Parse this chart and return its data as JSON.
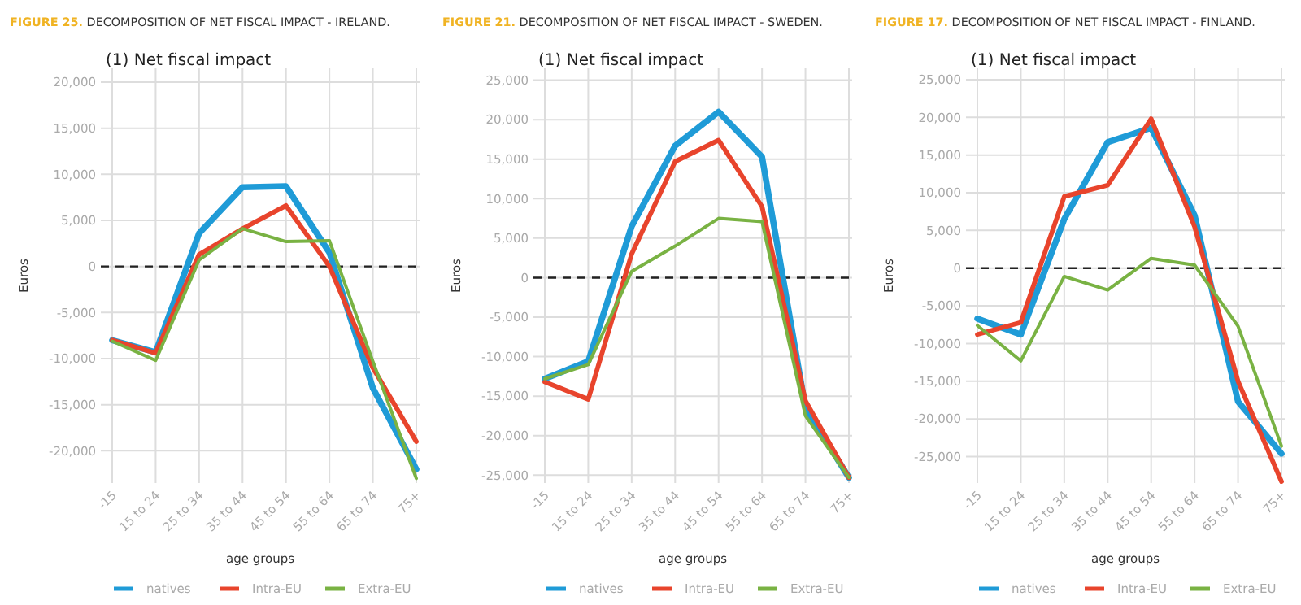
{
  "chart_data": [
    {
      "type": "line",
      "title": "FIGURE 25. DECOMPOSITION OF NET FISCAL IMPACT - IRELAND.",
      "subtitle": "(1) Net fiscal impact",
      "xlabel": "age groups",
      "ylabel": "Euros",
      "categories": [
        "-15",
        "15 to 24",
        "25 to 34",
        "35 to 44",
        "45 to 54",
        "55 to 64",
        "65 to 74",
        "75+"
      ],
      "series": [
        {
          "name": "natives",
          "color": "#1f9bd7",
          "values": [
            -8000,
            -9300,
            3600,
            8600,
            8700,
            1500,
            -13200,
            -22000
          ]
        },
        {
          "name": "Intra-EU",
          "color": "#e8442c",
          "values": [
            -8000,
            -9400,
            1300,
            4100,
            6600,
            0,
            -11000,
            -19000
          ]
        },
        {
          "name": "Extra-EU",
          "color": "#79b243",
          "values": [
            -8100,
            -10200,
            700,
            4100,
            2700,
            2800,
            -10300,
            -23000
          ]
        }
      ],
      "ylim": [
        -23500,
        21500
      ],
      "yticks": [
        {
          "value": -20000,
          "label": "-20,000"
        },
        {
          "value": -15000,
          "label": "-15,000"
        },
        {
          "value": -10000,
          "label": "-10,000"
        },
        {
          "value": -5000,
          "label": "-5,000"
        },
        {
          "value": 0,
          "label": "0"
        },
        {
          "value": 5000,
          "label": "5,000"
        },
        {
          "value": 10000,
          "label": "10,000"
        },
        {
          "value": 15000,
          "label": "15,000"
        },
        {
          "value": 20000,
          "label": "20,000"
        }
      ],
      "grid": true,
      "legend": "bottom",
      "line_style": "solid",
      "ref_lines": [
        {
          "axis": "y",
          "value": 0,
          "color": "#222222",
          "line_style": "dashed"
        }
      ]
    },
    {
      "type": "line",
      "title": "FIGURE 21. DECOMPOSITION OF NET FISCAL IMPACT - SWEDEN.",
      "subtitle": "(1) Net fiscal impact",
      "xlabel": "age groups",
      "ylabel": "Euros",
      "categories": [
        "-15",
        "15 to 24",
        "25 to 34",
        "35 to 44",
        "45 to 54",
        "55 to 64",
        "65 to 74",
        "75+"
      ],
      "series": [
        {
          "name": "natives",
          "color": "#1f9bd7",
          "values": [
            -12800,
            -10600,
            6500,
            16700,
            21000,
            15300,
            -16500,
            -25300
          ]
        },
        {
          "name": "Intra-EU",
          "color": "#e8442c",
          "values": [
            -13200,
            -15400,
            3000,
            14700,
            17400,
            9000,
            -15600,
            -25300
          ]
        },
        {
          "name": "Extra-EU",
          "color": "#79b243",
          "values": [
            -12800,
            -11000,
            800,
            4000,
            7500,
            7100,
            -17500,
            -25300
          ]
        }
      ],
      "ylim": [
        -26000,
        26500
      ],
      "yticks": [
        {
          "value": -25000,
          "label": "-25,000"
        },
        {
          "value": -20000,
          "label": "-20,000"
        },
        {
          "value": -15000,
          "label": "-15,000"
        },
        {
          "value": -10000,
          "label": "-10,000"
        },
        {
          "value": -5000,
          "label": "-5,000"
        },
        0,
        {
          "value": 5000,
          "label": "5,000"
        },
        {
          "value": 10000,
          "label": "10,000"
        },
        {
          "value": 15000,
          "label": "15,000"
        },
        {
          "value": 20000,
          "label": "20,000"
        },
        {
          "value": 25000,
          "label": "25,000"
        }
      ],
      "grid": true,
      "legend": "bottom",
      "line_style": "solid",
      "ref_lines": [
        {
          "axis": "y",
          "value": 0,
          "color": "#222222",
          "line_style": "dashed"
        }
      ]
    },
    {
      "type": "line",
      "title": "FIGURE 17. DECOMPOSITION OF NET FISCAL IMPACT - FINLAND.",
      "subtitle": "(1) Net fiscal impact",
      "xlabel": "age groups",
      "ylabel": "Euros",
      "categories": [
        "-15",
        "15 to 24",
        "25 to 34",
        "35 to 44",
        "45 to 54",
        "55 to 64",
        "65 to 74",
        "75+"
      ],
      "series": [
        {
          "name": "natives",
          "color": "#1f9bd7",
          "values": [
            -6700,
            -8800,
            6500,
            16700,
            18600,
            7000,
            -17700,
            -24600
          ]
        },
        {
          "name": "Intra-EU",
          "color": "#e8442c",
          "values": [
            -8800,
            -7200,
            9500,
            11000,
            19800,
            5500,
            -15000,
            -28300
          ]
        },
        {
          "name": "Extra-EU",
          "color": "#79b243",
          "values": [
            -7600,
            -12300,
            -1100,
            -2900,
            1300,
            400,
            -7700,
            -23600
          ]
        }
      ],
      "ylim": [
        -28500,
        26500
      ],
      "yticks": [
        {
          "value": -25000,
          "label": "-25,000"
        },
        {
          "value": -20000,
          "label": "-20,000"
        },
        {
          "value": -15000,
          "label": "-15,000"
        },
        {
          "value": -10000,
          "label": "-10,000"
        },
        {
          "value": -5000,
          "label": "-5,000"
        },
        0,
        {
          "value": 5000,
          "label": "5,000"
        },
        {
          "value": 10000,
          "label": "10,000"
        },
        {
          "value": 15000,
          "label": "15,000"
        },
        {
          "value": 20000,
          "label": "20,000"
        },
        {
          "value": 25000,
          "label": "25,000"
        }
      ],
      "grid": true,
      "legend": "bottom",
      "line_style": "solid",
      "ref_lines": [
        {
          "axis": "y",
          "value": 0,
          "color": "#222222",
          "line_style": "dashed"
        }
      ]
    }
  ]
}
